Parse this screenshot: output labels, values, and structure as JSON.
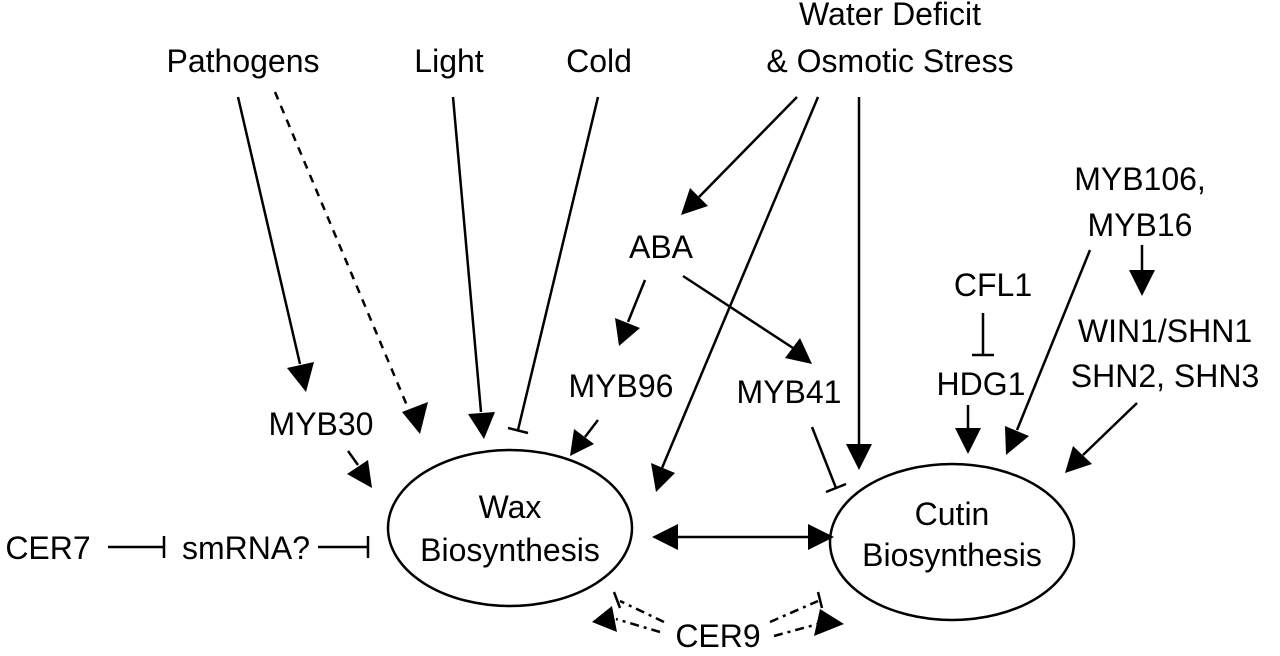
{
  "nodes": {
    "pathogens": "Pathogens",
    "light": "Light",
    "cold": "Cold",
    "water_deficit_line1": "Water Deficit",
    "water_deficit_line2": "& Osmotic Stress",
    "aba": "ABA",
    "myb96": "MYB96",
    "myb41": "MYB41",
    "myb30": "MYB30",
    "myb106_line1": "MYB106,",
    "myb106_line2": "MYB16",
    "cfl1": "CFL1",
    "hdg1": "HDG1",
    "win1_line1": "WIN1/SHN1",
    "win1_line2": "SHN2, SHN3",
    "cer7": "CER7",
    "smrna": "smRNA?",
    "cer9": "CER9",
    "wax_line1": "Wax",
    "wax_line2": "Biosynthesis",
    "cutin_line1": "Cutin",
    "cutin_line2": "Biosynthesis"
  },
  "edges": [
    {
      "from": "Pathogens",
      "to": "MYB30",
      "type": "activation",
      "style": "solid"
    },
    {
      "from": "Pathogens",
      "to": "Wax Biosynthesis",
      "type": "activation",
      "style": "dashed"
    },
    {
      "from": "Light",
      "to": "Wax Biosynthesis",
      "type": "activation",
      "style": "solid"
    },
    {
      "from": "Cold",
      "to": "Wax Biosynthesis",
      "type": "inhibition",
      "style": "solid"
    },
    {
      "from": "Water Deficit & Osmotic Stress",
      "to": "ABA",
      "type": "activation",
      "style": "solid"
    },
    {
      "from": "Water Deficit & Osmotic Stress",
      "to": "Wax Biosynthesis",
      "type": "activation",
      "style": "solid"
    },
    {
      "from": "Water Deficit & Osmotic Stress",
      "to": "Cutin Biosynthesis",
      "type": "activation",
      "style": "solid"
    },
    {
      "from": "ABA",
      "to": "MYB96",
      "type": "activation",
      "style": "solid"
    },
    {
      "from": "ABA",
      "to": "MYB41",
      "type": "activation",
      "style": "solid"
    },
    {
      "from": "MYB96",
      "to": "Wax Biosynthesis",
      "type": "activation",
      "style": "solid"
    },
    {
      "from": "MYB41",
      "to": "Cutin Biosynthesis",
      "type": "inhibition",
      "style": "solid"
    },
    {
      "from": "MYB30",
      "to": "Wax Biosynthesis",
      "type": "activation",
      "style": "solid"
    },
    {
      "from": "CFL1",
      "to": "HDG1",
      "type": "inhibition",
      "style": "solid"
    },
    {
      "from": "HDG1",
      "to": "Cutin Biosynthesis",
      "type": "activation",
      "style": "solid"
    },
    {
      "from": "MYB106, MYB16",
      "to": "WIN1/SHN1 SHN2, SHN3",
      "type": "activation",
      "style": "solid"
    },
    {
      "from": "MYB106, MYB16",
      "to": "Cutin Biosynthesis",
      "type": "activation",
      "style": "solid"
    },
    {
      "from": "WIN1/SHN1 SHN2, SHN3",
      "to": "Cutin Biosynthesis",
      "type": "activation",
      "style": "solid"
    },
    {
      "from": "CER7",
      "to": "smRNA?",
      "type": "inhibition",
      "style": "solid"
    },
    {
      "from": "smRNA?",
      "to": "Wax Biosynthesis",
      "type": "inhibition",
      "style": "solid"
    },
    {
      "from": "Wax Biosynthesis",
      "to": "Cutin Biosynthesis",
      "type": "bidirectional",
      "style": "solid"
    },
    {
      "from": "CER9",
      "to": "Wax Biosynthesis",
      "type": "activation+inhibition",
      "style": "dash-dot"
    },
    {
      "from": "CER9",
      "to": "Cutin Biosynthesis",
      "type": "activation+inhibition",
      "style": "dash-dot"
    }
  ],
  "colors": {
    "stroke": "#000000",
    "background": "#ffffff"
  }
}
